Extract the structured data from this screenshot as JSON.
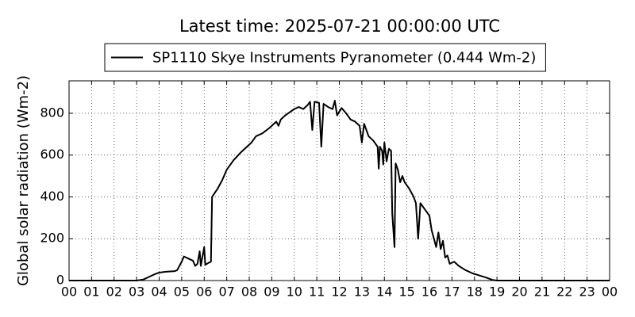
{
  "chart_data": {
    "type": "line",
    "title": "Latest time: 2025-07-21 00:00:00 UTC",
    "y_label": "Global solar radiation (Wm-2)",
    "x": [
      0,
      3.0,
      3.3,
      3.6,
      3.8,
      4.0,
      4.3,
      4.7,
      4.8,
      5.0,
      5.1,
      5.3,
      5.5,
      5.6,
      5.7,
      5.8,
      5.85,
      6.0,
      6.05,
      6.2,
      6.3,
      6.35,
      6.6,
      6.8,
      7.0,
      7.3,
      7.6,
      7.9,
      8.1,
      8.3,
      8.6,
      8.9,
      9.2,
      9.3,
      9.4,
      9.6,
      9.8,
      10.0,
      10.2,
      10.4,
      10.6,
      10.7,
      10.8,
      10.9,
      11.1,
      11.2,
      11.3,
      11.5,
      11.7,
      11.8,
      11.9,
      12.1,
      12.3,
      12.5,
      12.7,
      12.9,
      13.0,
      13.1,
      13.3,
      13.5,
      13.7,
      13.75,
      13.8,
      13.9,
      13.95,
      14.0,
      14.1,
      14.2,
      14.3,
      14.35,
      14.4,
      14.45,
      14.5,
      14.6,
      14.7,
      14.8,
      14.9,
      15.1,
      15.3,
      15.4,
      15.5,
      15.6,
      15.8,
      16.0,
      16.1,
      16.3,
      16.4,
      16.5,
      16.6,
      16.7,
      16.8,
      16.9,
      17.1,
      17.3,
      17.6,
      17.9,
      18.2,
      18.5,
      18.8,
      19.0,
      24
    ],
    "series": [
      {
        "name": "SP1110 Skye Instruments Pyranometer (0.444 Wm-2)",
        "color": "#000000",
        "values": [
          0,
          0,
          5,
          20,
          30,
          38,
          42,
          45,
          50,
          90,
          115,
          105,
          95,
          70,
          80,
          140,
          70,
          160,
          75,
          85,
          90,
          400,
          440,
          480,
          530,
          575,
          610,
          640,
          660,
          690,
          705,
          730,
          760,
          740,
          770,
          790,
          805,
          820,
          830,
          820,
          840,
          855,
          720,
          855,
          850,
          640,
          845,
          830,
          820,
          860,
          790,
          825,
          800,
          770,
          760,
          740,
          660,
          750,
          690,
          670,
          640,
          535,
          640,
          620,
          555,
          660,
          570,
          630,
          620,
          320,
          240,
          160,
          560,
          530,
          470,
          500,
          470,
          440,
          400,
          370,
          200,
          370,
          340,
          310,
          240,
          160,
          230,
          150,
          190,
          110,
          120,
          80,
          90,
          70,
          50,
          35,
          25,
          15,
          3,
          0,
          0
        ]
      }
    ],
    "xlim": [
      0,
      24
    ],
    "xticks": [
      {
        "value": 0,
        "label": "00"
      },
      {
        "value": 1,
        "label": "01"
      },
      {
        "value": 2,
        "label": "02"
      },
      {
        "value": 3,
        "label": "03"
      },
      {
        "value": 4,
        "label": "04"
      },
      {
        "value": 5,
        "label": "05"
      },
      {
        "value": 6,
        "label": "06"
      },
      {
        "value": 7,
        "label": "07"
      },
      {
        "value": 8,
        "label": "08"
      },
      {
        "value": 9,
        "label": "09"
      },
      {
        "value": 10,
        "label": "10"
      },
      {
        "value": 11,
        "label": "11"
      },
      {
        "value": 12,
        "label": "12"
      },
      {
        "value": 13,
        "label": "13"
      },
      {
        "value": 14,
        "label": "14"
      },
      {
        "value": 15,
        "label": "15"
      },
      {
        "value": 16,
        "label": "16"
      },
      {
        "value": 17,
        "label": "17"
      },
      {
        "value": 18,
        "label": "18"
      },
      {
        "value": 19,
        "label": "19"
      },
      {
        "value": 20,
        "label": "20"
      },
      {
        "value": 21,
        "label": "21"
      },
      {
        "value": 22,
        "label": "22"
      },
      {
        "value": 23,
        "label": "23"
      },
      {
        "value": 24,
        "label": "00"
      }
    ],
    "ylim": [
      0,
      955
    ],
    "yticks": [
      0,
      200,
      400,
      600,
      800
    ],
    "grid": true,
    "legend": "top"
  }
}
